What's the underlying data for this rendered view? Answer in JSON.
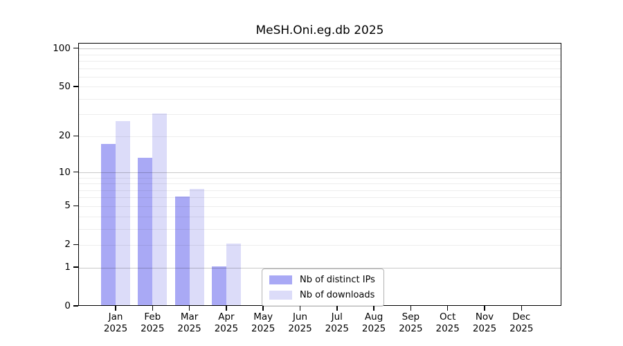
{
  "chart_data": {
    "type": "bar",
    "title": "MeSH.Oni.eg.db 2025",
    "xlabel": "",
    "ylabel": "",
    "year": "2025",
    "categories": [
      "Jan",
      "Feb",
      "Mar",
      "Apr",
      "May",
      "Jun",
      "Jul",
      "Aug",
      "Sep",
      "Oct",
      "Nov",
      "Dec"
    ],
    "series": [
      {
        "name": "Nb of distinct IPs",
        "color": "#a9a9f5",
        "values": [
          17,
          13,
          6,
          1,
          0,
          0,
          0,
          0,
          0,
          0,
          0,
          0
        ]
      },
      {
        "name": "Nb of downloads",
        "color": "#dcdcf9",
        "values": [
          26,
          30,
          7,
          2,
          0,
          0,
          0,
          0,
          0,
          0,
          0,
          0
        ]
      }
    ],
    "y_axis": {
      "scale": "log1p",
      "tick_values": [
        0,
        1,
        2,
        5,
        10,
        20,
        50,
        100
      ],
      "tick_labels": [
        "0",
        "1",
        "2",
        "5",
        "10",
        "20",
        "50",
        "100"
      ],
      "minor_gridlines": [
        3,
        4,
        6,
        7,
        8,
        9,
        30,
        40,
        60,
        70,
        80,
        90
      ],
      "strong_gridlines": [
        1,
        10,
        100
      ],
      "min_value": 0,
      "max_value": 110,
      "grid": true
    },
    "legend": {
      "position": "inside-bottom-center",
      "border_color": "#b3b3b3"
    }
  }
}
